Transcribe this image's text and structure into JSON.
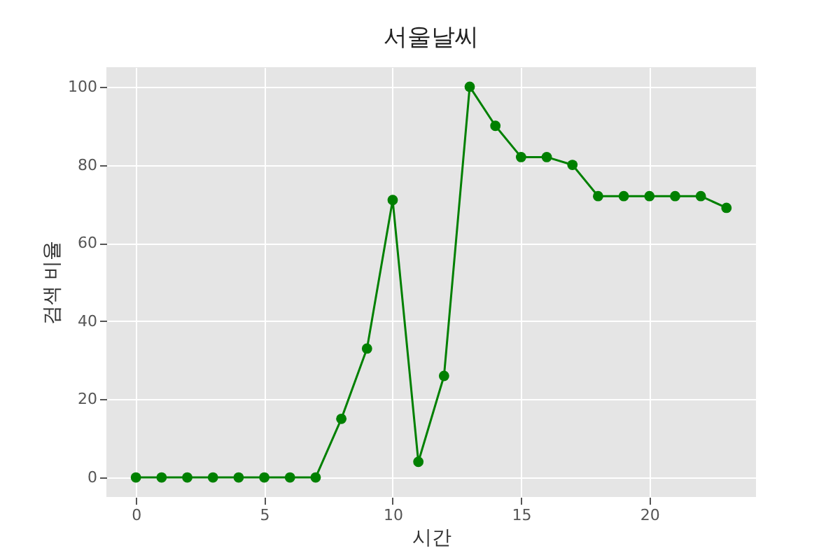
{
  "chart_data": {
    "type": "line",
    "title": "서울날씨",
    "xlabel": "시간",
    "ylabel": "검색 비율",
    "x": [
      0,
      1,
      2,
      3,
      4,
      5,
      6,
      7,
      8,
      9,
      10,
      11,
      12,
      13,
      14,
      15,
      16,
      17,
      18,
      19,
      20,
      21,
      22,
      23
    ],
    "series": [
      {
        "color": "#008000",
        "values": [
          0,
          0,
          0,
          0,
          0,
          0,
          0,
          0,
          15,
          33,
          71,
          4,
          26,
          100,
          90,
          82,
          82,
          80,
          72,
          72,
          72,
          72,
          72,
          69
        ]
      }
    ],
    "xlim": [
      -1.15,
      24.15
    ],
    "xticks": [
      0,
      5,
      10,
      15,
      20
    ],
    "ylim": [
      -5,
      105
    ],
    "yticks": [
      0,
      20,
      40,
      60,
      80,
      100
    ],
    "grid": true,
    "marker": "circle",
    "line_style": "solid"
  }
}
